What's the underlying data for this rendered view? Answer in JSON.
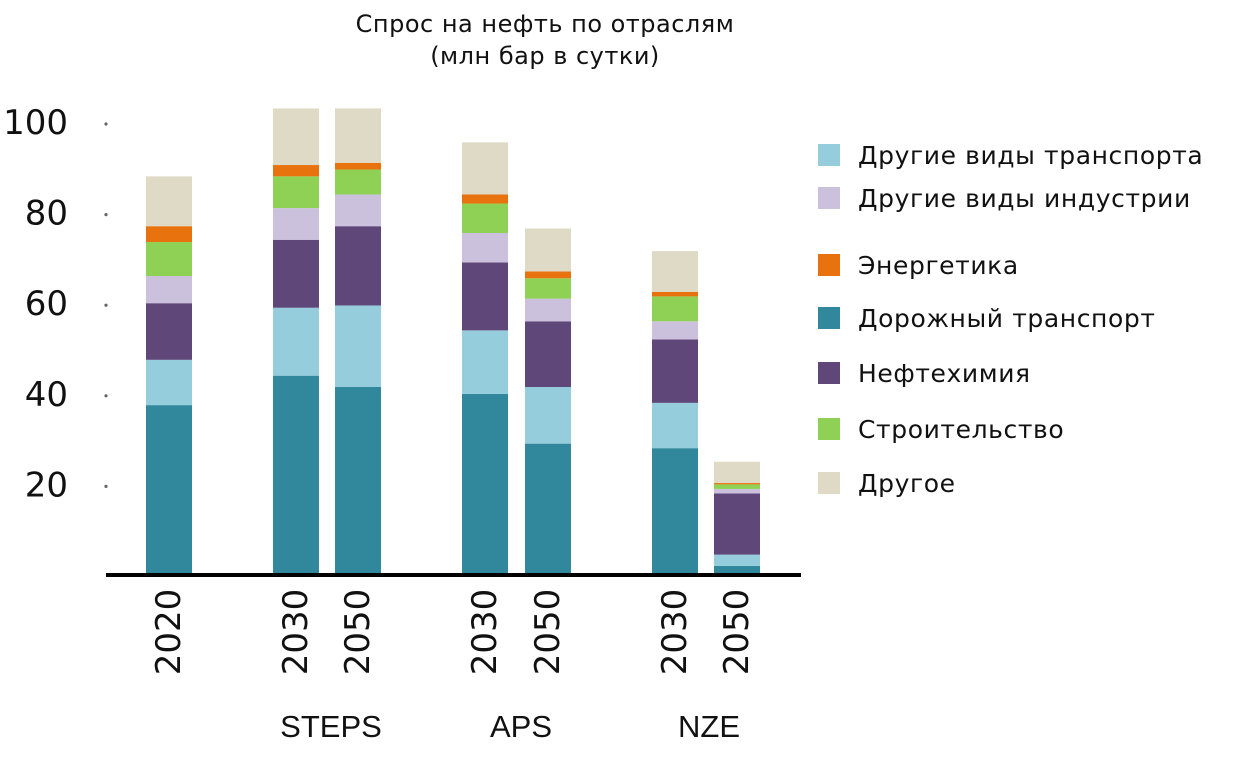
{
  "chart_data": {
    "type": "bar",
    "stacked": true,
    "title": "Спрос на нефть по отраслям",
    "subtitle": "(млн бар в сутки)",
    "xlabel": "",
    "ylabel": "",
    "ylim": [
      0,
      100
    ],
    "yticks": [
      20,
      40,
      60,
      80,
      100
    ],
    "grid": false,
    "legend_position": "right",
    "categories": [
      "2020",
      "2030",
      "2050",
      "2030",
      "2050",
      "2030",
      "2050"
    ],
    "groups": [
      {
        "label": "",
        "categories": [
          0
        ]
      },
      {
        "label": "STEPS",
        "categories": [
          1,
          2
        ]
      },
      {
        "label": "APS",
        "categories": [
          3,
          4
        ]
      },
      {
        "label": "NZE",
        "categories": [
          5,
          6
        ]
      }
    ],
    "series": [
      {
        "name": "Дорожный транспорт",
        "color": "#31889c",
        "values": [
          37.5,
          44,
          41.5,
          40,
          29,
          28,
          2
        ]
      },
      {
        "name": "Другие виды транспорта",
        "color": "#95cddd",
        "values": [
          10,
          15,
          18,
          14,
          12.5,
          10,
          2.5
        ]
      },
      {
        "name": "Нефтехимия",
        "color": "#5f477a",
        "values": [
          12.5,
          15,
          17.5,
          15,
          14.5,
          14,
          13.5
        ]
      },
      {
        "name": "Другие виды индустрии",
        "color": "#ccc1dd",
        "values": [
          6,
          7,
          7,
          6.5,
          5,
          4,
          1
        ]
      },
      {
        "name": "Строительство",
        "color": "#8fd154",
        "values": [
          7.5,
          7,
          5.5,
          6.5,
          4.5,
          5.5,
          1
        ]
      },
      {
        "name": "Энергетика",
        "color": "#e8720e",
        "values": [
          3.5,
          2.5,
          1.5,
          2,
          1.5,
          1,
          0.3
        ]
      },
      {
        "name": "Другое",
        "color": "#dfdac5",
        "values": [
          11,
          12.5,
          12,
          11.5,
          9.5,
          9,
          4.7
        ]
      }
    ],
    "legend": [
      {
        "name": "Другие виды транспорта",
        "color": "#95cddd"
      },
      {
        "name": "Другие виды индустрии",
        "color": "#ccc1dd"
      },
      {
        "name": "Энергетика",
        "color": "#e8720e"
      },
      {
        "name": "Дорожный транспорт",
        "color": "#31889c"
      },
      {
        "name": "Нефтехимия",
        "color": "#5f477a"
      },
      {
        "name": "Строительство",
        "color": "#8fd154"
      },
      {
        "name": "Другое",
        "color": "#dfdac5"
      }
    ]
  }
}
